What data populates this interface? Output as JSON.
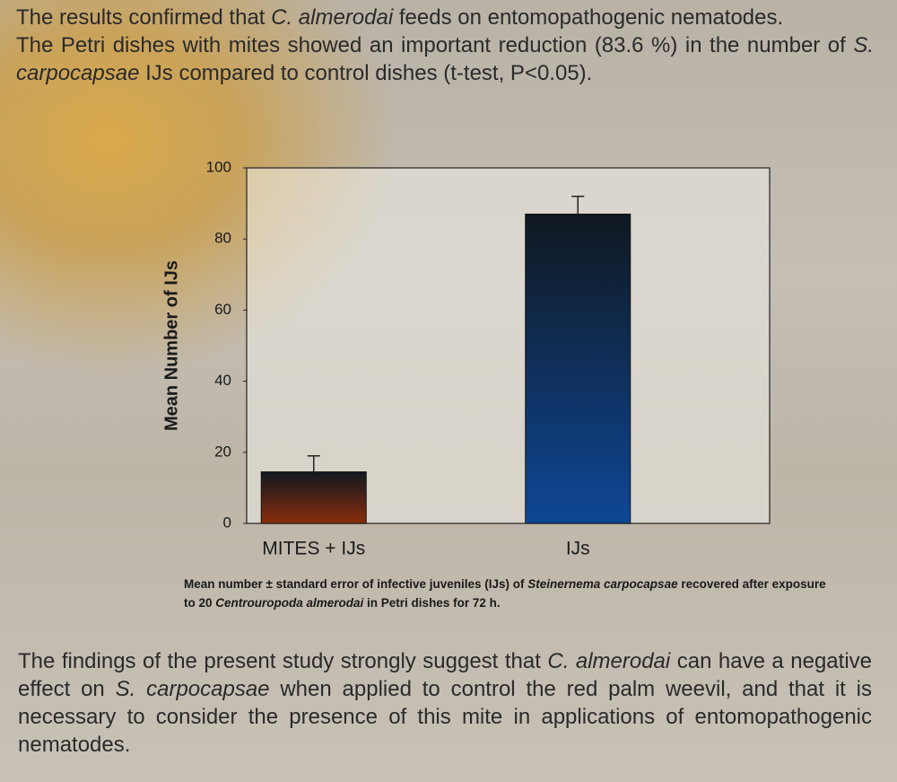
{
  "intro": [
    [
      {
        "text": "The results confirmed that "
      },
      {
        "text": "C. almerodai",
        "italic": true
      },
      {
        "text": " feeds on entomopathogenic nematodes."
      }
    ],
    [
      {
        "text": "The Petri dishes with mites showed an important reduction (83.6 %) in the number of "
      },
      {
        "text": "S. carpocapsae",
        "italic": true
      },
      {
        "text": " IJs compared to control dishes (t-test, P<0.05)."
      }
    ]
  ],
  "chart_data": {
    "type": "bar",
    "ylabel": "Mean Number of IJs",
    "categories": [
      "MITES + IJs",
      "IJs"
    ],
    "values": [
      14.5,
      87
    ],
    "errors": [
      4.5,
      5
    ],
    "colors": [
      "#8a2c0c",
      "#0e4796"
    ],
    "ylim": [
      0,
      100
    ],
    "yticks": [
      0,
      20,
      40,
      60,
      80,
      100
    ],
    "caption": [
      {
        "text": "Mean number ± standard error of infective juveniles (IJs) of "
      },
      {
        "text": "Steinernema carpocapsae",
        "italic": true
      },
      {
        "text": " recovered after exposure to 20 "
      },
      {
        "text": "Centrouropoda almerodai",
        "italic": true
      },
      {
        "text": " in Petri dishes for 72 h."
      }
    ]
  },
  "conclusion": [
    [
      {
        "text": "The findings of the present study strongly suggest that "
      },
      {
        "text": "C. almerodai",
        "italic": true
      },
      {
        "text": " can have a negative effect on "
      },
      {
        "text": "S. carpocapsae",
        "italic": true
      },
      {
        "text": " when applied to control the red palm weevil, and that it is necessary to consider the presence of this mite in applications of entomopathogenic nematodes."
      }
    ]
  ]
}
